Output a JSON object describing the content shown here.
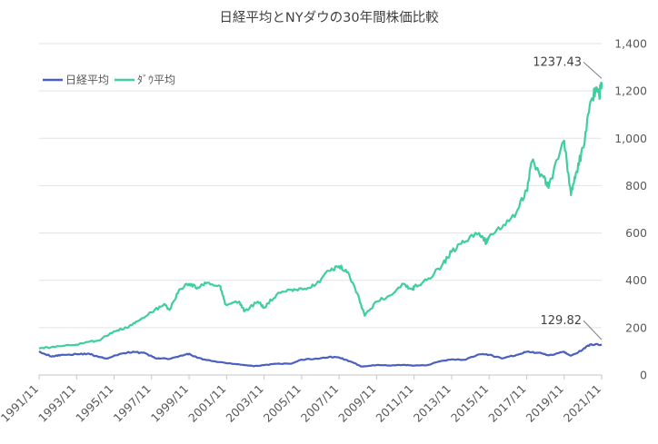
{
  "chart_data": {
    "type": "line",
    "title": "日経平均とNYダウの30年間株価比較",
    "xlabel": "",
    "ylabel": "",
    "y_axis_side": "right",
    "ylim": [
      0,
      1400
    ],
    "yticks": [
      0,
      200,
      400,
      600,
      800,
      1000,
      1200,
      1400
    ],
    "ytick_labels": [
      "0",
      "200",
      "400",
      "600",
      "800",
      "1,000",
      "1,200",
      "1,400"
    ],
    "xlim": [
      1991.833,
      2021.833
    ],
    "xticks": [
      1991.833,
      1993.833,
      1995.833,
      1997.833,
      1999.833,
      2001.833,
      2003.833,
      2005.833,
      2007.833,
      2009.833,
      2011.833,
      2013.833,
      2015.833,
      2017.833,
      2019.833,
      2021.833
    ],
    "xtick_labels": [
      "1991/11",
      "1993/11",
      "1995/11",
      "1997/11",
      "1999/11",
      "2001/11",
      "2003/11",
      "2005/11",
      "2007/11",
      "2009/11",
      "2011/11",
      "2013/11",
      "2015/11",
      "2017/11",
      "2019/11",
      "2021/11"
    ],
    "grid": true,
    "legend": "top-left",
    "series": [
      {
        "name": "日経平均",
        "color": "#4a5fc1",
        "x": [
          1991.833,
          1992.5,
          1993.0,
          1993.833,
          1994.5,
          1995.0,
          1995.5,
          1996.2,
          1996.833,
          1997.5,
          1998.0,
          1998.8,
          1999.5,
          1999.833,
          2000.3,
          2001.0,
          2001.833,
          2002.5,
          2003.3,
          2003.833,
          2004.5,
          2005.3,
          2005.833,
          2006.5,
          2007.3,
          2007.833,
          2008.5,
          2009.0,
          2009.833,
          2010.5,
          2011.3,
          2011.833,
          2012.5,
          2013.3,
          2013.833,
          2014.5,
          2015.3,
          2015.833,
          2016.5,
          2017.3,
          2017.833,
          2018.5,
          2019.0,
          2019.833,
          2020.2,
          2020.8,
          2021.2,
          2021.833
        ],
        "y": [
          100,
          78,
          85,
          88,
          90,
          76,
          70,
          90,
          98,
          92,
          72,
          68,
          82,
          90,
          72,
          60,
          50,
          45,
          37,
          42,
          47,
          48,
          65,
          68,
          76,
          74,
          55,
          36,
          42,
          40,
          43,
          40,
          41,
          60,
          66,
          64,
          87,
          85,
          70,
          85,
          98,
          94,
          83,
          98,
          82,
          105,
          128,
          129.82
        ]
      },
      {
        "name": "ﾀﾞｳ平均",
        "color": "#3fcf9d",
        "x": [
          1991.833,
          1992.5,
          1993.0,
          1993.833,
          1994.5,
          1995.0,
          1995.833,
          1996.5,
          1997.0,
          1997.833,
          1998.5,
          1998.8,
          1999.3,
          1999.833,
          2000.3,
          2000.8,
          2001.5,
          2001.75,
          2002.5,
          2002.8,
          2003.5,
          2003.833,
          2004.5,
          2005.3,
          2005.833,
          2006.5,
          2007.3,
          2007.833,
          2008.3,
          2008.8,
          2009.2,
          2009.833,
          2010.5,
          2011.3,
          2011.75,
          2011.833,
          2012.5,
          2013.3,
          2013.833,
          2014.5,
          2015.3,
          2015.7,
          2015.833,
          2016.5,
          2017.3,
          2017.833,
          2018.1,
          2018.7,
          2019.0,
          2019.833,
          2020.2,
          2020.5,
          2020.833,
          2021.2,
          2021.5,
          2021.7,
          2021.833
        ],
        "y": [
          112,
          118,
          122,
          128,
          140,
          145,
          185,
          200,
          225,
          265,
          300,
          275,
          360,
          385,
          370,
          390,
          375,
          300,
          310,
          270,
          310,
          285,
          340,
          360,
          365,
          375,
          440,
          460,
          435,
          345,
          250,
          310,
          335,
          385,
          360,
          372,
          400,
          460,
          520,
          560,
          600,
          560,
          585,
          620,
          690,
          780,
          900,
          840,
          790,
          990,
          760,
          860,
          960,
          1140,
          1200,
          1180,
          1237.43
        ]
      }
    ],
    "annotations": [
      {
        "series": 1,
        "text": "1237.43"
      },
      {
        "series": 0,
        "text": "129.82"
      }
    ]
  }
}
